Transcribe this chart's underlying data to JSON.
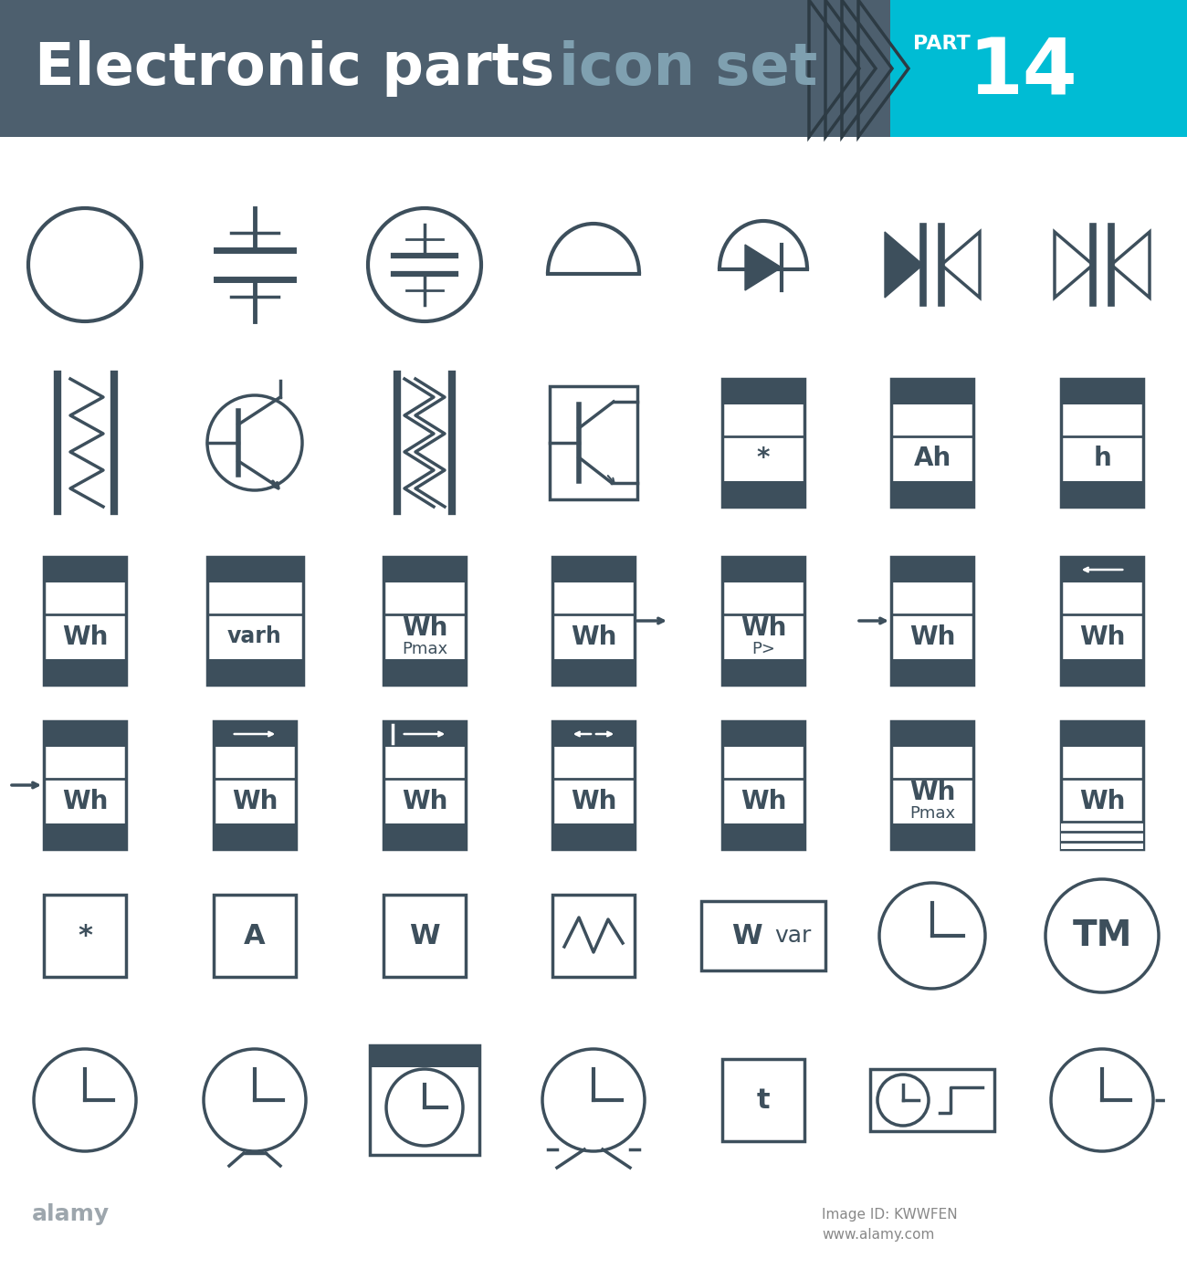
{
  "title": "Electronic parts",
  "subtitle": "icon set",
  "part_num": "14",
  "header_bg": "#4d5f6e",
  "header_cyan": "#00bcd4",
  "icon_color": "#3d4f5c",
  "bg_color": "#ffffff",
  "rows": 6,
  "cols": 7
}
